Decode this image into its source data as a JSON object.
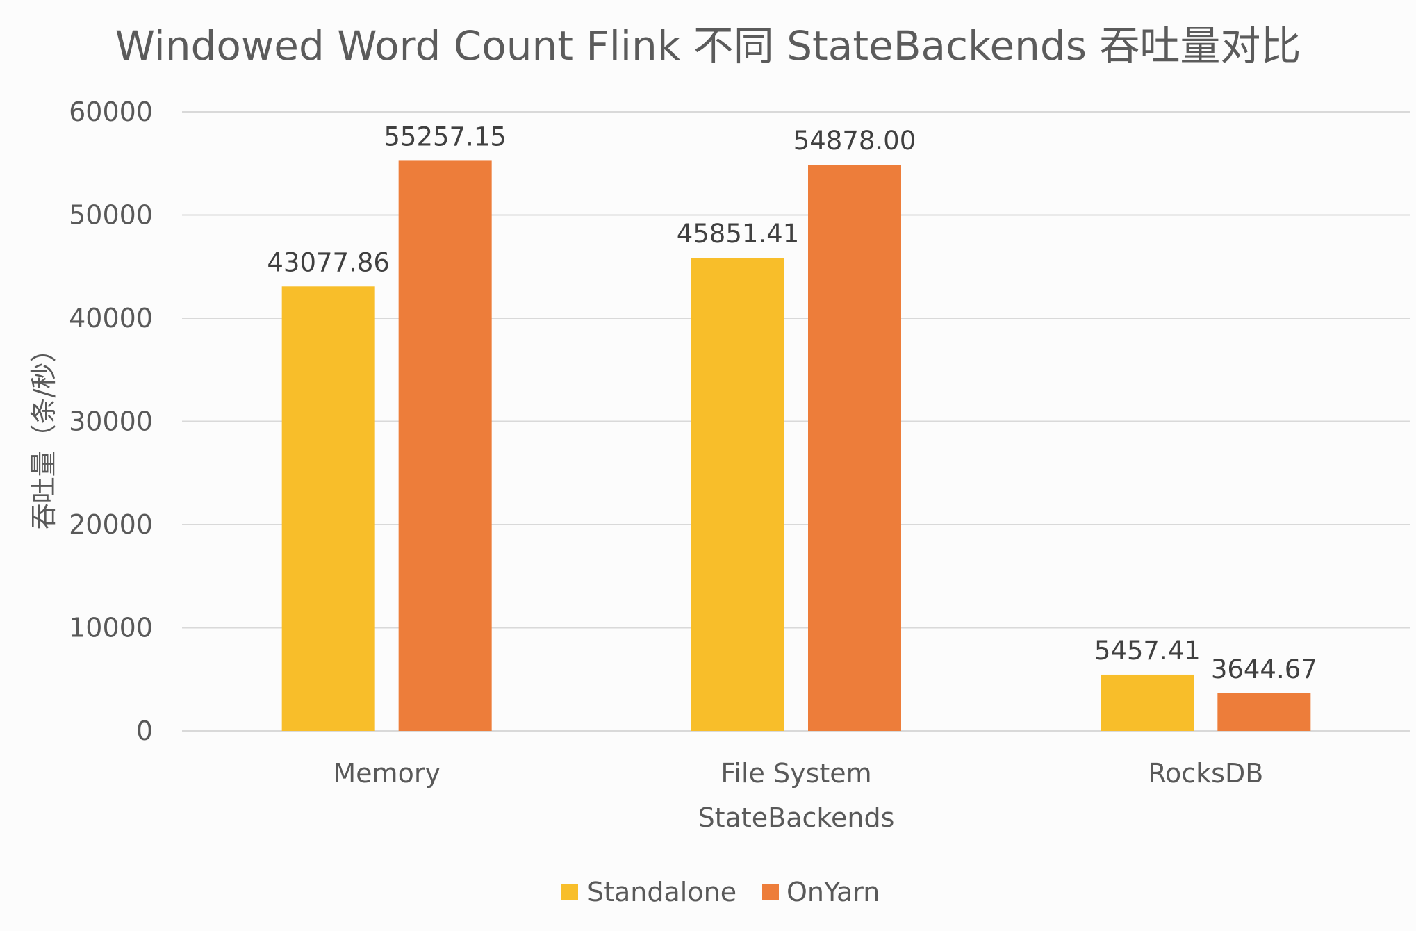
{
  "chart_data": {
    "type": "bar",
    "title": "Windowed Word Count Flink 不同 StateBackends 吞吐量对比",
    "xlabel": "StateBackends",
    "ylabel": "吞吐量（条/秒）",
    "categories": [
      "Memory",
      "File System",
      "RocksDB"
    ],
    "series": [
      {
        "name": "Standalone",
        "values": [
          43077.86,
          45851.41,
          5457.41
        ],
        "labels": [
          "43077.86",
          "45851.41",
          "5457.41"
        ],
        "color": "#F8BE2A"
      },
      {
        "name": "OnYarn",
        "values": [
          55257.15,
          54878.0,
          3644.67
        ],
        "labels": [
          "55257.15",
          "54878.00",
          "3644.67"
        ],
        "color": "#ED7D3A"
      }
    ],
    "ylim": [
      0,
      60000
    ],
    "yticks": [
      0,
      10000,
      20000,
      30000,
      40000,
      50000,
      60000
    ],
    "grid": true,
    "legend": "bottom"
  }
}
